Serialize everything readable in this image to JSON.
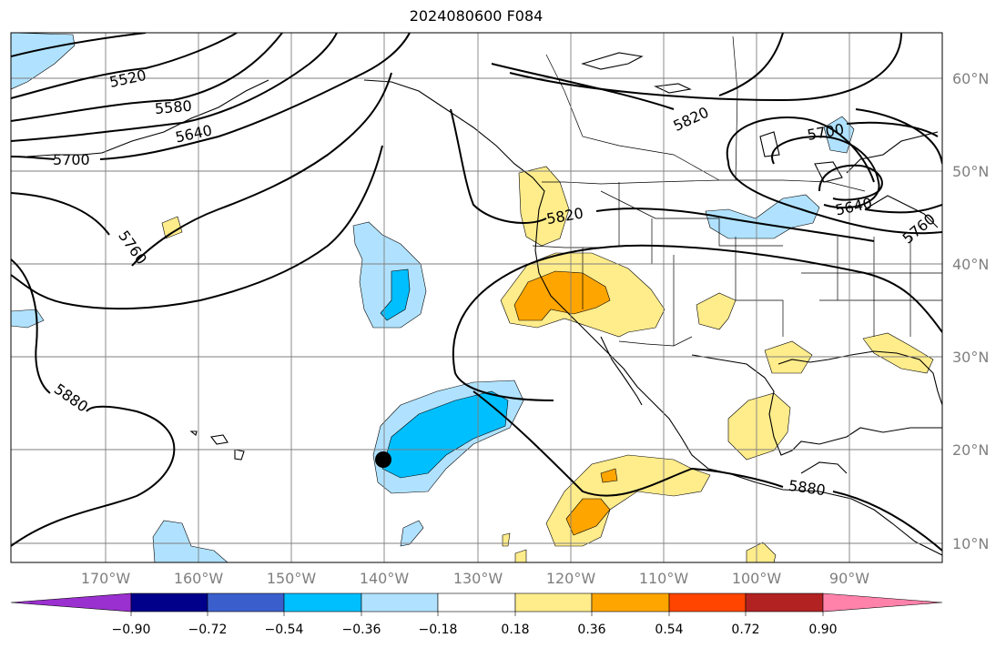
{
  "title": "2024080600 F084",
  "lat_labels": [
    "60°N",
    "50°N",
    "40°N",
    "30°N",
    "20°N",
    "10°N"
  ],
  "lon_labels": [
    "170°W",
    "160°W",
    "150°W",
    "140°W",
    "130°W",
    "120°W",
    "110°W",
    "100°W",
    "90°W"
  ],
  "colorbar": {
    "labels": [
      "−0.90",
      "−0.72",
      "−0.54",
      "−0.36",
      "−0.18",
      "0.18",
      "0.36",
      "0.54",
      "0.72",
      "0.90"
    ],
    "colors": [
      "#9b30d0",
      "#00008b",
      "#3a5fcd",
      "#00bfff",
      "#b0e2ff",
      "#ffffff",
      "#ffec8b",
      "#ffa500",
      "#ff4500",
      "#b22222",
      "#ff82ab"
    ]
  },
  "contour_labels": [
    "5520",
    "5580",
    "5640",
    "5700",
    "5760",
    "5880",
    "5820",
    "5700",
    "5640",
    "5760",
    "5820",
    "5880"
  ],
  "colors": {
    "land_line": "#000000",
    "grid": "#7f7f7f"
  }
}
